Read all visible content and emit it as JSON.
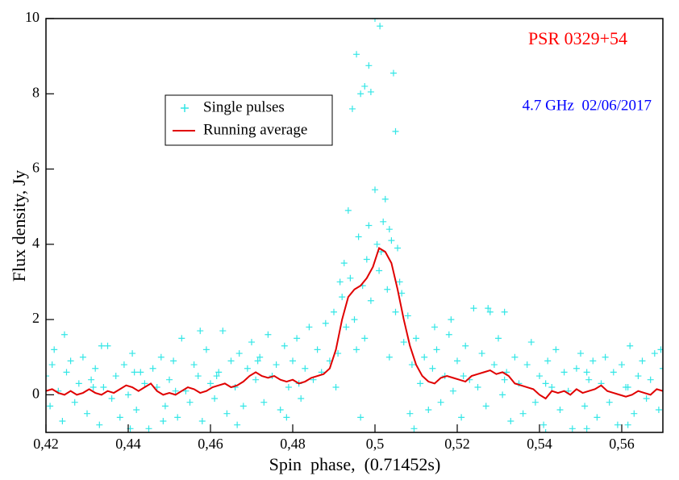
{
  "chart_data": {
    "type": "scatter",
    "xlabel": "Spin  phase,  (0.71452s)",
    "ylabel": "Flux density, Jy",
    "annotations": [
      {
        "text": "PSR 0329+54",
        "color": "#ff0000"
      },
      {
        "text": "4.7 GHz  02/06/2017",
        "color": "#0000ff"
      }
    ],
    "xlim": [
      0.42,
      0.57
    ],
    "ylim": [
      -1,
      10
    ],
    "xticks": [
      {
        "value": 0.42,
        "label": "0,42"
      },
      {
        "value": 0.44,
        "label": "0,44"
      },
      {
        "value": 0.46,
        "label": "0,46"
      },
      {
        "value": 0.48,
        "label": "0,48"
      },
      {
        "value": 0.5,
        "label": "0,5"
      },
      {
        "value": 0.52,
        "label": "0,52"
      },
      {
        "value": 0.54,
        "label": "0,54"
      },
      {
        "value": 0.56,
        "label": "0,56"
      }
    ],
    "yticks": [
      0,
      2,
      4,
      6,
      8,
      10
    ],
    "series": [
      {
        "name": "Single pulses",
        "type": "scatter",
        "color": "#33e6e6",
        "x": [
          0.42,
          0.421,
          0.422,
          0.423,
          0.424,
          0.425,
          0.426,
          0.427,
          0.428,
          0.429,
          0.43,
          0.431,
          0.432,
          0.433,
          0.434,
          0.435,
          0.436,
          0.437,
          0.438,
          0.439,
          0.44,
          0.441,
          0.442,
          0.443,
          0.444,
          0.445,
          0.446,
          0.447,
          0.448,
          0.449,
          0.45,
          0.451,
          0.452,
          0.453,
          0.454,
          0.455,
          0.456,
          0.457,
          0.458,
          0.459,
          0.46,
          0.461,
          0.462,
          0.463,
          0.464,
          0.465,
          0.466,
          0.467,
          0.468,
          0.469,
          0.47,
          0.471,
          0.472,
          0.473,
          0.474,
          0.475,
          0.476,
          0.477,
          0.478,
          0.479,
          0.48,
          0.481,
          0.482,
          0.483,
          0.484,
          0.485,
          0.486,
          0.487,
          0.488,
          0.489,
          0.49,
          0.491,
          0.492,
          0.493,
          0.494,
          0.495,
          0.496,
          0.497,
          0.498,
          0.499,
          0.5,
          0.501,
          0.502,
          0.503,
          0.504,
          0.505,
          0.506,
          0.507,
          0.508,
          0.509,
          0.51,
          0.511,
          0.512,
          0.513,
          0.514,
          0.515,
          0.516,
          0.517,
          0.518,
          0.519,
          0.52,
          0.521,
          0.522,
          0.523,
          0.524,
          0.525,
          0.526,
          0.527,
          0.528,
          0.529,
          0.53,
          0.531,
          0.532,
          0.533,
          0.534,
          0.535,
          0.536,
          0.537,
          0.538,
          0.539,
          0.54,
          0.541,
          0.542,
          0.543,
          0.544,
          0.545,
          0.546,
          0.547,
          0.548,
          0.549,
          0.55,
          0.551,
          0.552,
          0.553,
          0.554,
          0.555,
          0.556,
          0.557,
          0.558,
          0.559,
          0.56,
          0.561,
          0.562,
          0.563,
          0.564,
          0.565,
          0.566,
          0.567,
          0.568,
          0.569,
          0.57,
          0.4945,
          0.4965,
          0.4975,
          0.4955,
          0.4985,
          0.499,
          0.5,
          0.5012,
          0.5045,
          0.505,
          0.4935,
          0.4985,
          0.5025,
          0.5035,
          0.5005,
          0.5015,
          0.4925,
          0.4915,
          0.5055,
          0.5065,
          0.4975,
          0.5035,
          0.4955,
          0.4905,
          0.5085,
          0.5095,
          0.4965,
          0.5275,
          0.5315,
          0.5185,
          0.5145,
          0.4245,
          0.4335,
          0.4575,
          0.4405,
          0.4485,
          0.4665,
          0.4785,
          0.5415,
          0.5515,
          0.5615,
          0.5695,
          0.4215,
          0.4315,
          0.4415,
          0.4515,
          0.4615,
          0.4715,
          0.4815,
          0.5215,
          0.5315,
          0.5415,
          0.5515,
          0.5615
        ],
        "values": [
          0.5,
          -0.3,
          1.2,
          0.1,
          -0.7,
          0.6,
          0.9,
          -0.2,
          0.3,
          1.0,
          -0.5,
          0.4,
          0.7,
          -0.8,
          0.2,
          1.3,
          -0.1,
          0.5,
          -0.6,
          0.8,
          0.0,
          1.1,
          -0.4,
          0.6,
          0.3,
          -0.9,
          0.7,
          0.2,
          1.0,
          -0.3,
          0.4,
          0.9,
          -0.6,
          1.5,
          0.1,
          -0.2,
          0.8,
          0.5,
          -0.7,
          1.2,
          0.3,
          -0.1,
          0.6,
          1.7,
          -0.5,
          0.9,
          0.2,
          1.1,
          -0.3,
          0.7,
          1.4,
          0.4,
          1.0,
          -0.2,
          1.6,
          0.5,
          0.8,
          -0.4,
          1.3,
          0.2,
          0.9,
          1.5,
          -0.1,
          0.7,
          1.8,
          0.4,
          1.2,
          0.6,
          1.9,
          0.9,
          2.2,
          1.1,
          2.6,
          1.8,
          3.1,
          2.0,
          4.2,
          2.9,
          3.6,
          2.5,
          5.45,
          3.3,
          4.6,
          2.8,
          4.1,
          2.2,
          3.0,
          1.4,
          2.1,
          0.8,
          1.5,
          0.3,
          1.0,
          -0.4,
          0.7,
          1.2,
          -0.2,
          0.5,
          1.6,
          0.1,
          0.9,
          -0.6,
          1.3,
          0.4,
          2.3,
          0.2,
          1.1,
          -0.3,
          2.2,
          0.8,
          1.5,
          0.0,
          0.6,
          -0.7,
          1.0,
          0.3,
          -0.5,
          0.8,
          1.4,
          -0.2,
          0.5,
          -0.8,
          0.9,
          0.2,
          1.2,
          -0.4,
          0.6,
          0.1,
          -0.9,
          0.7,
          1.1,
          -0.3,
          0.4,
          0.9,
          -0.6,
          0.3,
          1.0,
          -0.2,
          0.6,
          -0.8,
          0.8,
          0.2,
          1.3,
          -0.5,
          0.5,
          0.9,
          -0.1,
          0.4,
          1.1,
          -0.4,
          0.7,
          7.6,
          8.0,
          8.2,
          9.05,
          8.75,
          8.05,
          10,
          9.8,
          8.55,
          7.0,
          4.9,
          4.5,
          5.2,
          4.4,
          4.0,
          3.8,
          3.5,
          3.0,
          3.9,
          2.7,
          1.5,
          1.0,
          1.2,
          0.2,
          -0.5,
          -0.9,
          -0.6,
          2.3,
          2.2,
          2.0,
          1.8,
          1.6,
          1.3,
          1.7,
          -0.9,
          -0.7,
          -0.8,
          -0.6,
          -1.0,
          -0.9,
          -0.8,
          1.2,
          0.8,
          0.2,
          0.6,
          0.1,
          0.5,
          0.9,
          0.3,
          0.5,
          0.4,
          0.3,
          0.6,
          0.2
        ]
      },
      {
        "name": "Running average",
        "type": "line",
        "color": "#e00000",
        "x": [
          0.42,
          0.4215,
          0.423,
          0.4245,
          0.426,
          0.4275,
          0.429,
          0.4305,
          0.432,
          0.4335,
          0.435,
          0.4365,
          0.438,
          0.4395,
          0.441,
          0.4425,
          0.444,
          0.4455,
          0.447,
          0.4485,
          0.45,
          0.4515,
          0.453,
          0.4545,
          0.456,
          0.4575,
          0.459,
          0.4605,
          0.462,
          0.4635,
          0.465,
          0.4665,
          0.468,
          0.4695,
          0.471,
          0.4725,
          0.474,
          0.4755,
          0.477,
          0.4785,
          0.48,
          0.4815,
          0.483,
          0.4845,
          0.486,
          0.4875,
          0.489,
          0.4905,
          0.492,
          0.4935,
          0.495,
          0.4965,
          0.498,
          0.4995,
          0.501,
          0.5025,
          0.504,
          0.5055,
          0.507,
          0.5085,
          0.51,
          0.5115,
          0.513,
          0.5145,
          0.516,
          0.5175,
          0.519,
          0.5205,
          0.522,
          0.5235,
          0.525,
          0.5265,
          0.528,
          0.5295,
          0.531,
          0.5325,
          0.534,
          0.5355,
          0.537,
          0.5385,
          0.54,
          0.5415,
          0.543,
          0.5445,
          0.546,
          0.5475,
          0.549,
          0.5505,
          0.552,
          0.5535,
          0.555,
          0.5565,
          0.558,
          0.5595,
          0.561,
          0.5625,
          0.564,
          0.5655,
          0.567,
          0.5685,
          0.57
        ],
        "values": [
          0.1,
          0.15,
          0.05,
          0.0,
          0.1,
          0.0,
          0.05,
          0.15,
          0.05,
          0.0,
          0.1,
          0.05,
          0.15,
          0.25,
          0.2,
          0.1,
          0.2,
          0.3,
          0.1,
          0.0,
          0.05,
          0.0,
          0.1,
          0.2,
          0.15,
          0.05,
          0.1,
          0.2,
          0.25,
          0.3,
          0.2,
          0.25,
          0.35,
          0.5,
          0.6,
          0.5,
          0.45,
          0.5,
          0.4,
          0.35,
          0.4,
          0.3,
          0.35,
          0.45,
          0.5,
          0.55,
          0.7,
          1.2,
          2.0,
          2.6,
          2.8,
          2.9,
          3.1,
          3.4,
          3.9,
          3.8,
          3.5,
          2.8,
          2.0,
          1.3,
          0.8,
          0.5,
          0.35,
          0.3,
          0.45,
          0.5,
          0.45,
          0.4,
          0.35,
          0.5,
          0.55,
          0.6,
          0.65,
          0.55,
          0.6,
          0.5,
          0.3,
          0.25,
          0.2,
          0.15,
          0.0,
          -0.1,
          0.1,
          0.05,
          0.1,
          0.0,
          0.15,
          0.05,
          0.1,
          0.15,
          0.25,
          0.1,
          0.05,
          0.0,
          -0.05,
          0.0,
          0.1,
          0.05,
          0.0,
          0.15,
          0.1
        ]
      }
    ]
  }
}
